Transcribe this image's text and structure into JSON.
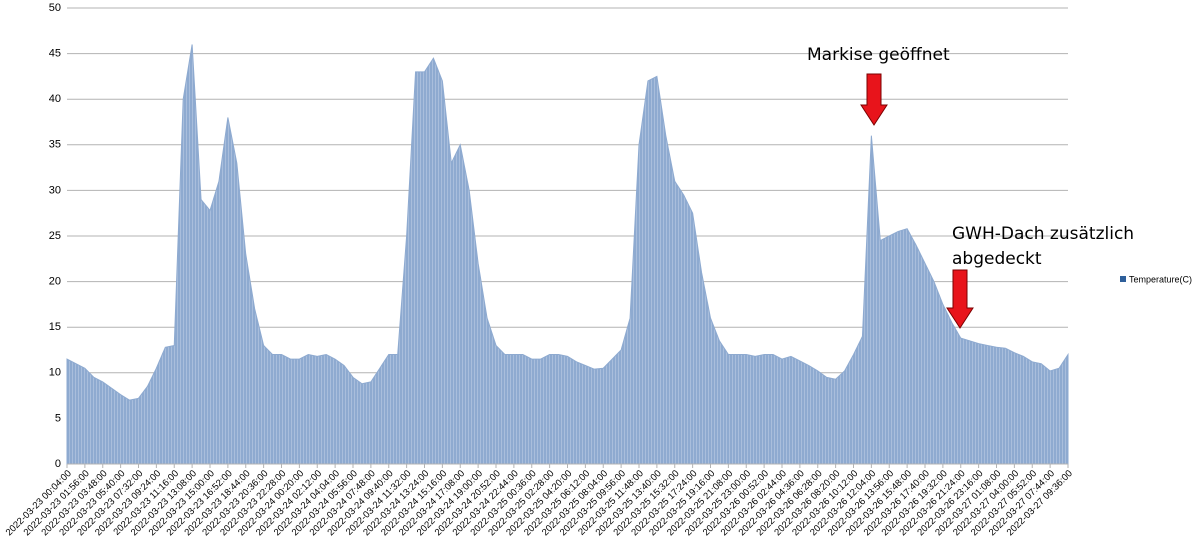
{
  "chart_data": {
    "type": "area",
    "categories": [
      "2022-03-23 00:04:00",
      null,
      "2022-03-23 01:56:00",
      null,
      "2022-03-23 03:48:00",
      null,
      "2022-03-23 05:40:00",
      null,
      "2022-03-23 07:32:00",
      null,
      "2022-03-23 09:24:00",
      null,
      "2022-03-23 11:16:00",
      null,
      "2022-03-23 13:08:00",
      null,
      "2022-03-23 15:00:00",
      null,
      "2022-03-23 16:52:00",
      null,
      "2022-03-23 18:44:00",
      null,
      "2022-03-23 20:36:00",
      null,
      "2022-03-23 22:28:00",
      null,
      "2022-03-24 00:20:00",
      null,
      "2022-03-24 02:12:00",
      null,
      "2022-03-24 04:04:00",
      null,
      "2022-03-24 05:56:00",
      null,
      "2022-03-24 07:48:00",
      null,
      "2022-03-24 09:40:00",
      null,
      "2022-03-24 11:32:00",
      null,
      "2022-03-24 13:24:00",
      null,
      "2022-03-24 15:16:00",
      null,
      "2022-03-24 17:08:00",
      null,
      "2022-03-24 19:00:00",
      null,
      "2022-03-24 20:52:00",
      null,
      "2022-03-24 22:44:00",
      null,
      "2022-03-25 00:36:00",
      null,
      "2022-03-25 02:28:00",
      null,
      "2022-03-25 04:20:00",
      null,
      "2022-03-25 06:12:00",
      null,
      "2022-03-25 08:04:00",
      null,
      "2022-03-25 09:56:00",
      null,
      "2022-03-25 11:48:00",
      null,
      "2022-03-25 13:40:00",
      null,
      "2022-03-25 15:32:00",
      null,
      "2022-03-25 17:24:00",
      null,
      "2022-03-25 19:16:00",
      null,
      "2022-03-25 21:08:00",
      null,
      "2022-03-25 23:00:00",
      null,
      "2022-03-26 00:52:00",
      null,
      "2022-03-26 02:44:00",
      null,
      "2022-03-26 04:36:00",
      null,
      "2022-03-26 06:28:00",
      null,
      "2022-03-26 08:20:00",
      null,
      "2022-03-26 10:12:00",
      null,
      "2022-03-26 12:04:00",
      null,
      "2022-03-26 13:56:00",
      null,
      "2022-03-26 15:48:00",
      null,
      "2022-03-26 17:40:00",
      null,
      "2022-03-26 19:32:00",
      null,
      "2022-03-26 21:24:00",
      null,
      "2022-03-26 23:16:00",
      null,
      "2022-03-27 01:08:00",
      null,
      "2022-03-27 04:00:00",
      null,
      "2022-03-27 05:52:00",
      null,
      "2022-03-27 07:44:00",
      null,
      "2022-03-27 09:36:00"
    ],
    "series": [
      {
        "name": "Temperature(C)",
        "color": "#8eaad0",
        "values": [
          11.5,
          11,
          10.5,
          9.5,
          9,
          8.3,
          7.6,
          7,
          7.2,
          8.5,
          10.5,
          12.8,
          13,
          40,
          46,
          29,
          27.8,
          31,
          38,
          33,
          23,
          17,
          13,
          12,
          12,
          11.5,
          11.5,
          12,
          11.8,
          12,
          11.5,
          10.8,
          9.5,
          8.8,
          9,
          10.5,
          12,
          12,
          25,
          43,
          43,
          44.5,
          42,
          33,
          35,
          30,
          22,
          16,
          13,
          12,
          12,
          12,
          11.5,
          11.5,
          12,
          12,
          11.8,
          11.2,
          10.8,
          10.4,
          10.5,
          11.5,
          12.5,
          16,
          35,
          42,
          42.5,
          36,
          31,
          29.5,
          27.5,
          21,
          16,
          13.5,
          12,
          12,
          12,
          11.8,
          12,
          12,
          11.5,
          11.8,
          11.3,
          10.8,
          10.2,
          9.5,
          9.3,
          10.2,
          12,
          14,
          36,
          24.5,
          25,
          25.5,
          25.8,
          24,
          22,
          20,
          17.5,
          15.5,
          13.8,
          13.5,
          13.2,
          13,
          12.8,
          12.7,
          12.2,
          11.8,
          11.2,
          11,
          10.2,
          10.5,
          12
        ]
      }
    ],
    "ylim": [
      0,
      50
    ],
    "yticks": [
      0,
      5,
      10,
      15,
      20,
      25,
      30,
      35,
      40,
      45,
      50
    ],
    "grid": true,
    "annotations": [
      {
        "lines": [
          "Markise geöffnet"
        ]
      },
      {
        "lines": [
          "GWH-Dach zusätzlich",
          "abgedeckt"
        ]
      }
    ]
  }
}
